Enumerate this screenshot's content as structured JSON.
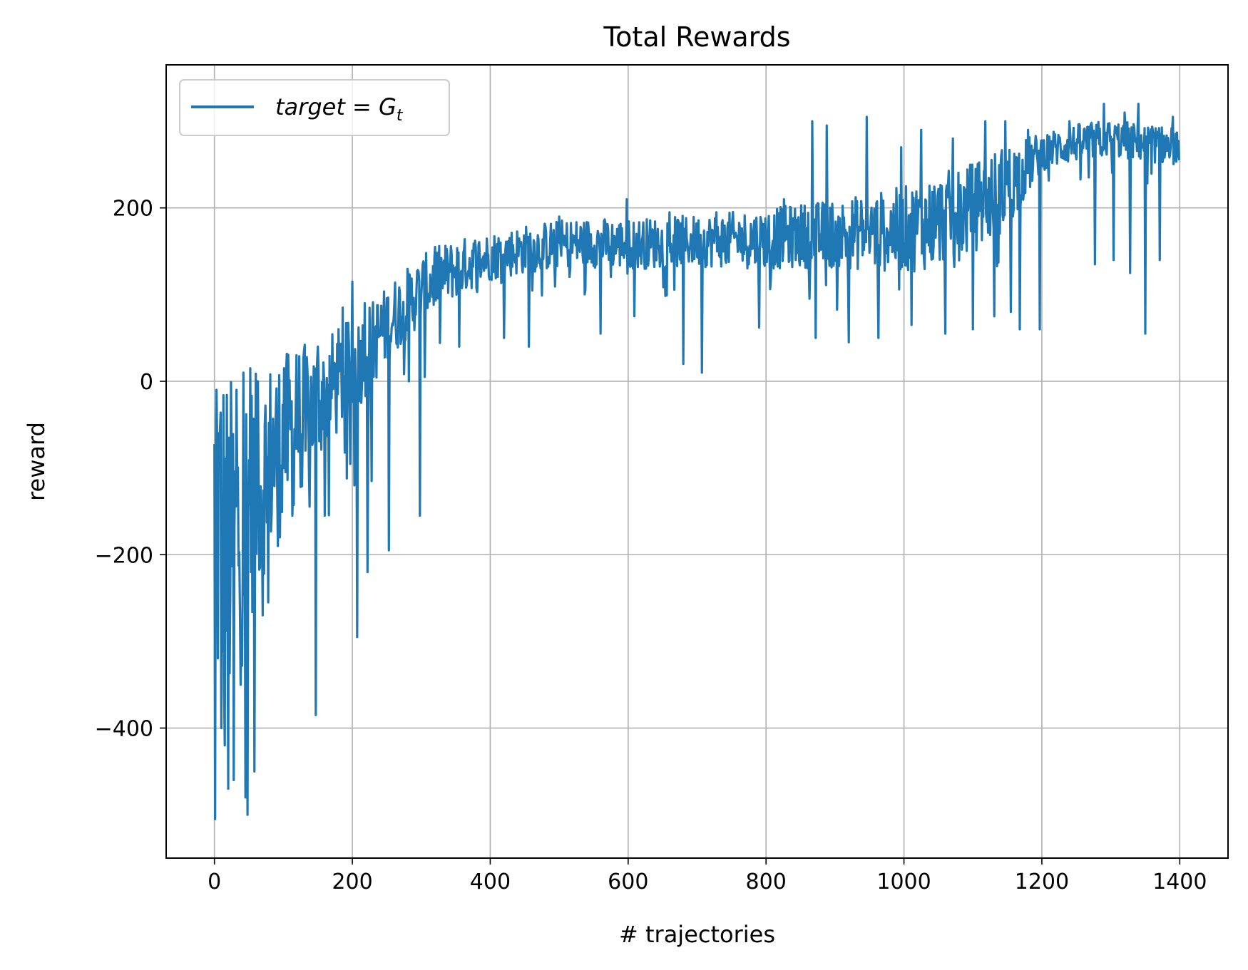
{
  "chart_data": {
    "type": "line",
    "title": "Total Rewards",
    "xlabel": "# trajectories",
    "ylabel": "reward",
    "xlim": [
      -70,
      1470
    ],
    "ylim": [
      -550,
      365
    ],
    "xticks": [
      0,
      200,
      400,
      600,
      800,
      1000,
      1200,
      1400
    ],
    "xtick_labels": [
      "0",
      "200",
      "400",
      "600",
      "800",
      "1000",
      "1200",
      "1400"
    ],
    "yticks": [
      -400,
      -200,
      0,
      200
    ],
    "ytick_labels": [
      "−400",
      "−200",
      "0",
      "200"
    ],
    "grid": true,
    "legend_position": "upper-left",
    "series": [
      {
        "name": "target = G_t",
        "legend_label": "target = G",
        "legend_subscript": "t",
        "color": "#1f77b4",
        "num_points": 1400,
        "x_start": 0,
        "x_step": 1,
        "anchors": [
          [
            0,
            -150
          ],
          [
            20,
            -200
          ],
          [
            40,
            -160
          ],
          [
            60,
            -120
          ],
          [
            80,
            -90
          ],
          [
            100,
            -70
          ],
          [
            120,
            -50
          ],
          [
            140,
            -30
          ],
          [
            160,
            -15
          ],
          [
            180,
            0
          ],
          [
            200,
            15
          ],
          [
            220,
            35
          ],
          [
            240,
            55
          ],
          [
            260,
            75
          ],
          [
            280,
            90
          ],
          [
            300,
            105
          ],
          [
            320,
            118
          ],
          [
            340,
            126
          ],
          [
            360,
            133
          ],
          [
            380,
            139
          ],
          [
            400,
            144
          ],
          [
            450,
            152
          ],
          [
            500,
            158
          ],
          [
            550,
            160
          ],
          [
            600,
            158
          ],
          [
            650,
            160
          ],
          [
            700,
            162
          ],
          [
            750,
            163
          ],
          [
            800,
            164
          ],
          [
            850,
            168
          ],
          [
            900,
            170
          ],
          [
            950,
            172
          ],
          [
            1000,
            175
          ],
          [
            1050,
            185
          ],
          [
            1100,
            200
          ],
          [
            1150,
            225
          ],
          [
            1200,
            265
          ],
          [
            1250,
            275
          ],
          [
            1300,
            280
          ],
          [
            1350,
            275
          ],
          [
            1400,
            270
          ]
        ],
        "noise_bands": [
          [
            0,
            250
          ],
          [
            60,
            130
          ],
          [
            150,
            70
          ],
          [
            250,
            45
          ],
          [
            400,
            28
          ],
          [
            700,
            30
          ],
          [
            900,
            40
          ],
          [
            1050,
            55
          ],
          [
            1150,
            50
          ],
          [
            1200,
            22
          ],
          [
            1400,
            22
          ]
        ],
        "spikes": [
          [
            1,
            -505
          ],
          [
            3,
            -10
          ],
          [
            6,
            -60
          ],
          [
            10,
            -400
          ],
          [
            15,
            -420
          ],
          [
            20,
            -470
          ],
          [
            28,
            -460
          ],
          [
            32,
            -10
          ],
          [
            38,
            -350
          ],
          [
            42,
            10
          ],
          [
            45,
            -480
          ],
          [
            48,
            -500
          ],
          [
            52,
            15
          ],
          [
            58,
            -450
          ],
          [
            63,
            0
          ],
          [
            70,
            -270
          ],
          [
            78,
            -255
          ],
          [
            92,
            -190
          ],
          [
            101,
            15
          ],
          [
            113,
            -155
          ],
          [
            119,
            30
          ],
          [
            132,
            -80
          ],
          [
            147,
            -385
          ],
          [
            150,
            40
          ],
          [
            160,
            -155
          ],
          [
            175,
            20
          ],
          [
            186,
            85
          ],
          [
            200,
            115
          ],
          [
            203,
            -120
          ],
          [
            207,
            -295
          ],
          [
            218,
            90
          ],
          [
            222,
            -220
          ],
          [
            228,
            -115
          ],
          [
            253,
            -195
          ],
          [
            282,
            0
          ],
          [
            298,
            -155
          ],
          [
            305,
            5
          ],
          [
            320,
            155
          ],
          [
            355,
            40
          ],
          [
            420,
            50
          ],
          [
            456,
            40
          ],
          [
            500,
            190
          ],
          [
            560,
            55
          ],
          [
            598,
            210
          ],
          [
            609,
            75
          ],
          [
            660,
            195
          ],
          [
            680,
            20
          ],
          [
            707,
            10
          ],
          [
            728,
            195
          ],
          [
            790,
            62
          ],
          [
            826,
            210
          ],
          [
            867,
            300
          ],
          [
            872,
            50
          ],
          [
            888,
            295
          ],
          [
            905,
            190
          ],
          [
            920,
            45
          ],
          [
            939,
            195
          ],
          [
            946,
            305
          ],
          [
            963,
            50
          ],
          [
            996,
            270
          ],
          [
            1011,
            65
          ],
          [
            1025,
            290
          ],
          [
            1060,
            55
          ],
          [
            1071,
            280
          ],
          [
            1100,
            60
          ],
          [
            1118,
            300
          ],
          [
            1131,
            75
          ],
          [
            1147,
            300
          ],
          [
            1155,
            80
          ],
          [
            1168,
            60
          ],
          [
            1180,
            290
          ],
          [
            1197,
            60
          ],
          [
            1240,
            300
          ],
          [
            1277,
            135
          ],
          [
            1290,
            320
          ],
          [
            1304,
            140
          ],
          [
            1320,
            310
          ],
          [
            1328,
            125
          ],
          [
            1340,
            320
          ],
          [
            1350,
            55
          ],
          [
            1371,
            140
          ],
          [
            1390,
            305
          ],
          [
            1399,
            255
          ]
        ]
      }
    ]
  }
}
